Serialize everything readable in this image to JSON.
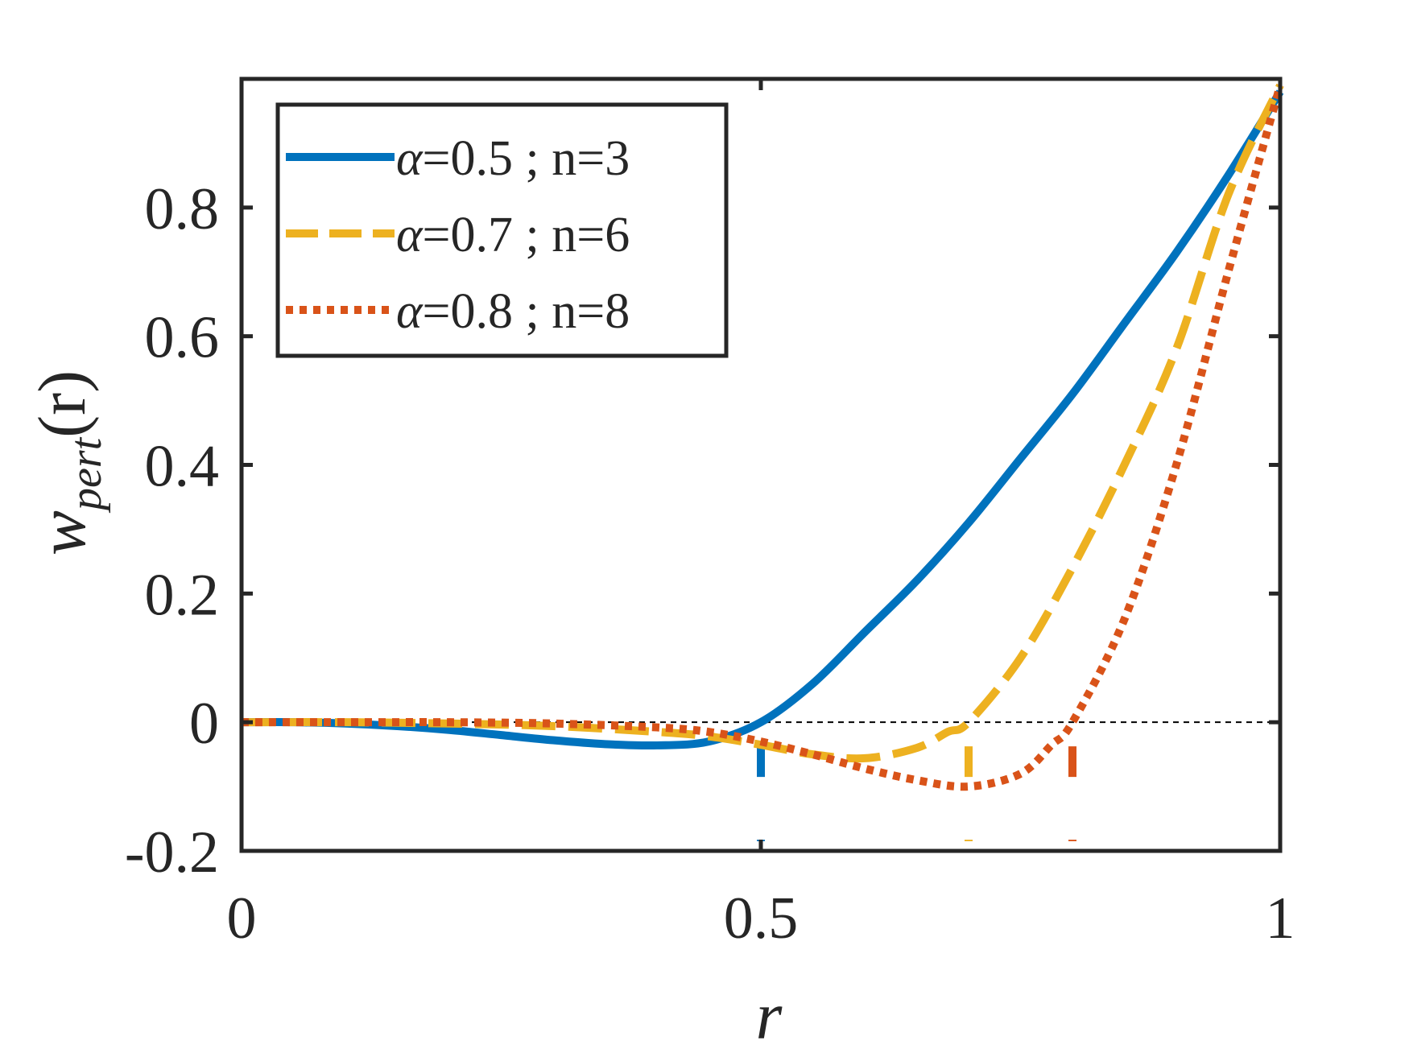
{
  "chart_data": {
    "type": "line",
    "xlabel": "r",
    "ylabel": {
      "main": "w",
      "subscript": "pert",
      "suffix": "(r)"
    },
    "xlim": [
      0,
      1
    ],
    "ylim": [
      -0.2,
      1.0
    ],
    "xticks": [
      0,
      0.5,
      1
    ],
    "xtick_labels": [
      "0",
      "0.5",
      "1"
    ],
    "yticks": [
      -0.2,
      0,
      0.2,
      0.4,
      0.6,
      0.8
    ],
    "ytick_labels": [
      "-0.2",
      "0",
      "0.2",
      "0.4",
      "0.6",
      "0.8"
    ],
    "grid": false,
    "legend_position": "top-left",
    "zero_reference_line": {
      "y": 0,
      "style": "dashed",
      "color": "#000000"
    },
    "series": [
      {
        "name": "α=0.5 ; n=3",
        "legend_label": {
          "alpha": "α",
          "text": "=0.5 ; n=3"
        },
        "color": "#0072BD",
        "style": "solid",
        "marker_r": 0.5,
        "x": [
          0,
          0.05,
          0.1,
          0.15,
          0.2,
          0.25,
          0.3,
          0.35,
          0.4,
          0.45,
          0.5,
          0.55,
          0.6,
          0.65,
          0.7,
          0.75,
          0.8,
          0.85,
          0.9,
          0.95,
          1.0
        ],
        "y": [
          0,
          0,
          -0.002,
          -0.006,
          -0.012,
          -0.02,
          -0.028,
          -0.034,
          -0.036,
          -0.03,
          0,
          0.06,
          0.14,
          0.22,
          0.31,
          0.41,
          0.51,
          0.62,
          0.73,
          0.85,
          0.98
        ]
      },
      {
        "name": "α=0.7 ; n=6",
        "legend_label": {
          "alpha": "α",
          "text": "=0.7 ; n=6"
        },
        "color": "#EDB120",
        "style": "dashed",
        "marker_r": 0.7,
        "x": [
          0,
          0.1,
          0.2,
          0.3,
          0.4,
          0.45,
          0.5,
          0.55,
          0.6,
          0.65,
          0.68,
          0.7,
          0.75,
          0.8,
          0.85,
          0.9,
          0.95,
          1.0
        ],
        "y": [
          0,
          0,
          -0.002,
          -0.006,
          -0.015,
          -0.022,
          -0.035,
          -0.05,
          -0.056,
          -0.04,
          -0.015,
          0,
          0.1,
          0.24,
          0.4,
          0.58,
          0.82,
          0.99
        ]
      },
      {
        "name": "α=0.8 ; n=8",
        "legend_label": {
          "alpha": "α",
          "text": "=0.8 ; n=8"
        },
        "color": "#D95319",
        "style": "dotted",
        "marker_r": 0.8,
        "x": [
          0,
          0.1,
          0.2,
          0.3,
          0.4,
          0.45,
          0.5,
          0.55,
          0.6,
          0.65,
          0.7,
          0.75,
          0.78,
          0.8,
          0.85,
          0.9,
          0.95,
          1.0
        ],
        "y": [
          0,
          0,
          0,
          -0.002,
          -0.008,
          -0.015,
          -0.03,
          -0.05,
          -0.072,
          -0.09,
          -0.1,
          -0.08,
          -0.035,
          0,
          0.16,
          0.4,
          0.7,
          0.99
        ]
      }
    ]
  }
}
